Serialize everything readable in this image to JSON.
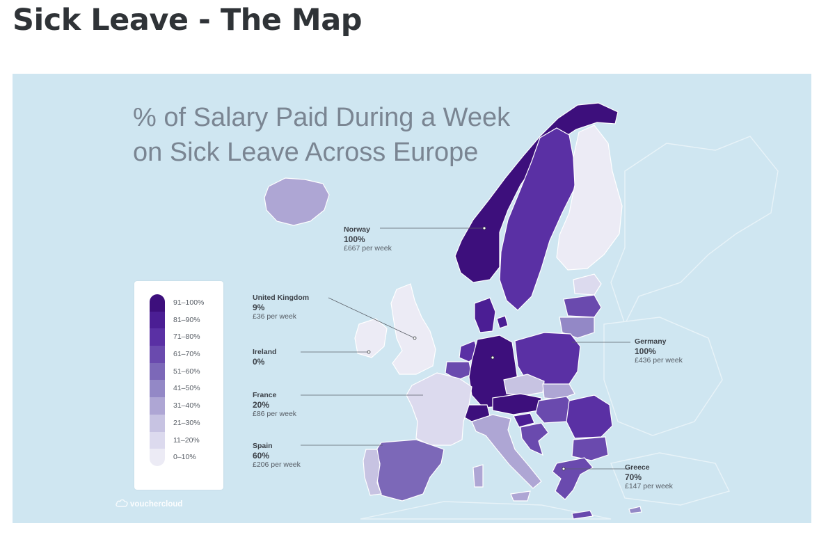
{
  "page": {
    "title": "Sick Leave - The Map"
  },
  "map": {
    "title_line1": "% of Salary Paid During a Week",
    "title_line2": "on Sick Leave Across Europe",
    "colors": {
      "sea": "#cfe6f1",
      "borders": "#ffffff",
      "non_eu_land": "#cfe6f1"
    },
    "legend": [
      {
        "label": "91–100%",
        "color": "#3d0f7c"
      },
      {
        "label": "81–90%",
        "color": "#4b1e94"
      },
      {
        "label": "71–80%",
        "color": "#5a30a4"
      },
      {
        "label": "61–70%",
        "color": "#6a4aae"
      },
      {
        "label": "51–60%",
        "color": "#7c68b8"
      },
      {
        "label": "41–50%",
        "color": "#9388c6"
      },
      {
        "label": "31–40%",
        "color": "#aea6d4"
      },
      {
        "label": "21–30%",
        "color": "#c7c3e2"
      },
      {
        "label": "11–20%",
        "color": "#dcdaee"
      },
      {
        "label": "0–10%",
        "color": "#ecebf5"
      }
    ],
    "callouts": {
      "norway": {
        "name": "Norway",
        "pct": "100%",
        "week": "£667 per week"
      },
      "uk": {
        "name": "United Kingdom",
        "pct": "9%",
        "week": "£36 per week"
      },
      "ireland": {
        "name": "Ireland",
        "pct": "0%"
      },
      "france": {
        "name": "France",
        "pct": "20%",
        "week": "£86 per week"
      },
      "spain": {
        "name": "Spain",
        "pct": "60%",
        "week": "£206 per week"
      },
      "germany": {
        "name": "Germany",
        "pct": "100%",
        "week": "£436 per week"
      },
      "greece": {
        "name": "Greece",
        "pct": "70%",
        "week": "£147 per week"
      }
    },
    "brand": "vouchercloud",
    "icons": {
      "brand": "cloud-icon"
    }
  }
}
